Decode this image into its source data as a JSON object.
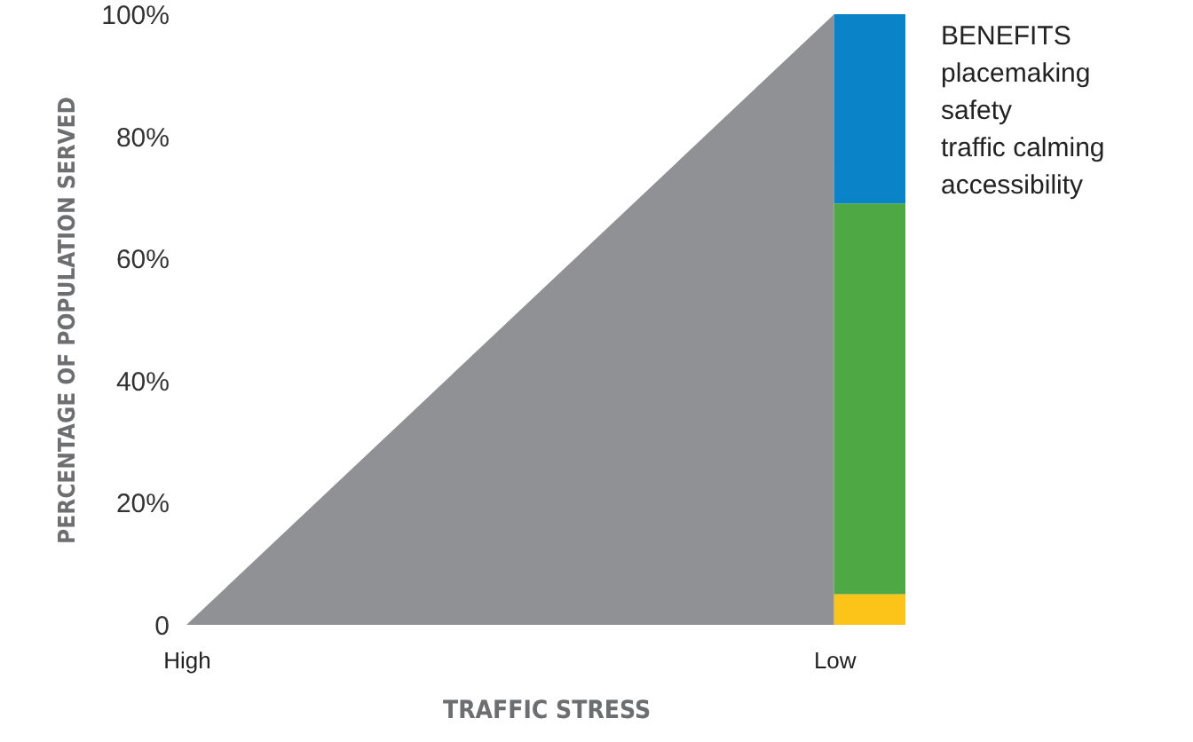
{
  "chart_data": {
    "type": "area",
    "categories": [
      "High",
      "Low"
    ],
    "xlabel": "TRAFFIC STRESS",
    "ylabel": "PERCENTAGE OF POPULATION SERVED",
    "ylim": [
      0,
      100
    ],
    "yticks": [
      {
        "value": 0,
        "label": "0"
      },
      {
        "value": 20,
        "label": "20%"
      },
      {
        "value": 40,
        "label": "40%"
      },
      {
        "value": 60,
        "label": "60%"
      },
      {
        "value": 80,
        "label": "80%"
      },
      {
        "value": 100,
        "label": "100%"
      }
    ],
    "grid": false,
    "annotations": [
      "BENEFITS",
      "placemaking",
      "safety",
      "traffic calming",
      "accessibility"
    ],
    "series": [
      {
        "color": "#8f9194",
        "values": [
          0,
          100
        ]
      },
      {
        "type": "bar",
        "color": "#fcc419",
        "base": [
          null,
          0
        ],
        "values": [
          null,
          5
        ]
      },
      {
        "type": "bar",
        "color": "#4ea843",
        "base": [
          null,
          5
        ],
        "values": [
          null,
          64
        ]
      },
      {
        "type": "bar",
        "color": "#0b83c9",
        "base": [
          null,
          69
        ],
        "values": [
          null,
          31
        ]
      }
    ]
  }
}
